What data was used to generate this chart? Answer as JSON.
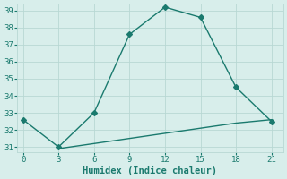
{
  "xlabel": "Humidex (Indice chaleur)",
  "line1_x": [
    0,
    3,
    6,
    9,
    12,
    15,
    18,
    21
  ],
  "line1_y": [
    32.6,
    31.0,
    33.0,
    37.6,
    39.2,
    38.6,
    34.5,
    32.5
  ],
  "line2_x": [
    3,
    6,
    9,
    12,
    15,
    18,
    21
  ],
  "line2_y": [
    30.9,
    31.2,
    31.5,
    31.8,
    32.1,
    32.4,
    32.6
  ],
  "line_color": "#1a7a6e",
  "bg_color": "#d8eeeb",
  "grid_color": "#b8d8d4",
  "xlim": [
    -0.5,
    22
  ],
  "ylim": [
    30.7,
    39.4
  ],
  "xticks": [
    0,
    3,
    6,
    9,
    12,
    15,
    18,
    21
  ],
  "yticks": [
    31,
    32,
    33,
    34,
    35,
    36,
    37,
    38,
    39
  ],
  "marker": "D",
  "markersize": 3,
  "linewidth": 1.0,
  "tick_fontsize": 6.5,
  "label_fontsize": 7.5
}
